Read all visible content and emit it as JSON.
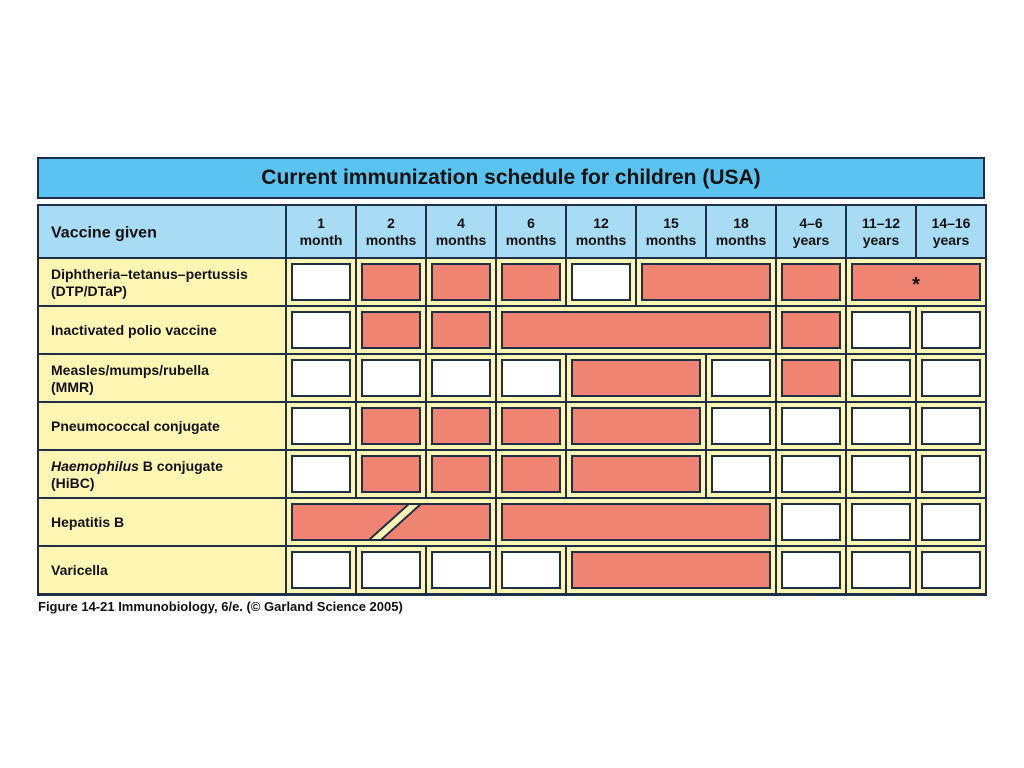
{
  "title": "Current immunization schedule for children (USA)",
  "header_first": "Vaccine given",
  "columns": [
    [
      "1",
      "month"
    ],
    [
      "2",
      "months"
    ],
    [
      "4",
      "months"
    ],
    [
      "6",
      "months"
    ],
    [
      "12",
      "months"
    ],
    [
      "15",
      "months"
    ],
    [
      "18",
      "months"
    ],
    [
      "4–6",
      "years"
    ],
    [
      "11–12",
      "years"
    ],
    [
      "14–16",
      "years"
    ]
  ],
  "rows": [
    {
      "label": [
        "Diphtheria–tetanus–pertussis",
        "(DTP/DTaP)"
      ],
      "boxes": [
        {
          "s": 0,
          "e": 0,
          "f": false
        },
        {
          "s": 1,
          "e": 1,
          "f": true
        },
        {
          "s": 2,
          "e": 2,
          "f": true
        },
        {
          "s": 3,
          "e": 3,
          "f": true
        },
        {
          "s": 4,
          "e": 4,
          "f": false
        },
        {
          "s": 5,
          "e": 6,
          "f": true
        },
        {
          "s": 7,
          "e": 7,
          "f": true
        },
        {
          "s": 8,
          "e": 9,
          "f": true,
          "mark": "*"
        }
      ]
    },
    {
      "label": [
        "Inactivated polio vaccine"
      ],
      "boxes": [
        {
          "s": 0,
          "e": 0,
          "f": false
        },
        {
          "s": 1,
          "e": 1,
          "f": true
        },
        {
          "s": 2,
          "e": 2,
          "f": true
        },
        {
          "s": 3,
          "e": 6,
          "f": true
        },
        {
          "s": 7,
          "e": 7,
          "f": true
        },
        {
          "s": 8,
          "e": 8,
          "f": false
        },
        {
          "s": 9,
          "e": 9,
          "f": false
        }
      ]
    },
    {
      "label": [
        "Measles/mumps/rubella",
        "(MMR)"
      ],
      "boxes": [
        {
          "s": 0,
          "e": 0,
          "f": false
        },
        {
          "s": 1,
          "e": 1,
          "f": false
        },
        {
          "s": 2,
          "e": 2,
          "f": false
        },
        {
          "s": 3,
          "e": 3,
          "f": false
        },
        {
          "s": 4,
          "e": 5,
          "f": true
        },
        {
          "s": 6,
          "e": 6,
          "f": false
        },
        {
          "s": 7,
          "e": 7,
          "f": true
        },
        {
          "s": 8,
          "e": 8,
          "f": false
        },
        {
          "s": 9,
          "e": 9,
          "f": false
        }
      ]
    },
    {
      "label": [
        "Pneumococcal conjugate"
      ],
      "boxes": [
        {
          "s": 0,
          "e": 0,
          "f": false
        },
        {
          "s": 1,
          "e": 1,
          "f": true
        },
        {
          "s": 2,
          "e": 2,
          "f": true
        },
        {
          "s": 3,
          "e": 3,
          "f": true
        },
        {
          "s": 4,
          "e": 5,
          "f": true
        },
        {
          "s": 6,
          "e": 6,
          "f": false
        },
        {
          "s": 7,
          "e": 7,
          "f": false
        },
        {
          "s": 8,
          "e": 8,
          "f": false
        },
        {
          "s": 9,
          "e": 9,
          "f": false
        }
      ]
    },
    {
      "label": [
        "Haemophilus B conjugate",
        "(HiBC)"
      ],
      "italic_word": "Haemophilus",
      "boxes": [
        {
          "s": 0,
          "e": 0,
          "f": false
        },
        {
          "s": 1,
          "e": 1,
          "f": true
        },
        {
          "s": 2,
          "e": 2,
          "f": true
        },
        {
          "s": 3,
          "e": 3,
          "f": true
        },
        {
          "s": 4,
          "e": 5,
          "f": true
        },
        {
          "s": 6,
          "e": 6,
          "f": false
        },
        {
          "s": 7,
          "e": 7,
          "f": false
        },
        {
          "s": 8,
          "e": 8,
          "f": false
        },
        {
          "s": 9,
          "e": 9,
          "f": false
        }
      ]
    },
    {
      "label": [
        "Hepatitis B"
      ],
      "boxes": [
        {
          "s": 0,
          "e": 2,
          "f": true,
          "slash": true
        },
        {
          "s": 3,
          "e": 6,
          "f": true
        },
        {
          "s": 7,
          "e": 7,
          "f": false
        },
        {
          "s": 8,
          "e": 8,
          "f": false
        },
        {
          "s": 9,
          "e": 9,
          "f": false
        }
      ]
    },
    {
      "label": [
        "Varicella"
      ],
      "boxes": [
        {
          "s": 0,
          "e": 0,
          "f": false
        },
        {
          "s": 1,
          "e": 1,
          "f": false
        },
        {
          "s": 2,
          "e": 2,
          "f": false
        },
        {
          "s": 3,
          "e": 3,
          "f": false
        },
        {
          "s": 4,
          "e": 6,
          "f": true
        },
        {
          "s": 7,
          "e": 7,
          "f": false
        },
        {
          "s": 8,
          "e": 8,
          "f": false
        },
        {
          "s": 9,
          "e": 9,
          "f": false
        }
      ]
    }
  ],
  "caption": "Figure 14-21  Immunobiology, 6/e. (© Garland Science 2005)",
  "colors": {
    "title_bg": "#5bc3ef",
    "header_bg": "#a8dcf4",
    "row_bg": "#fff6b3",
    "filled": "#ef8473",
    "empty": "#ffffff",
    "line": "#1f2f47"
  }
}
